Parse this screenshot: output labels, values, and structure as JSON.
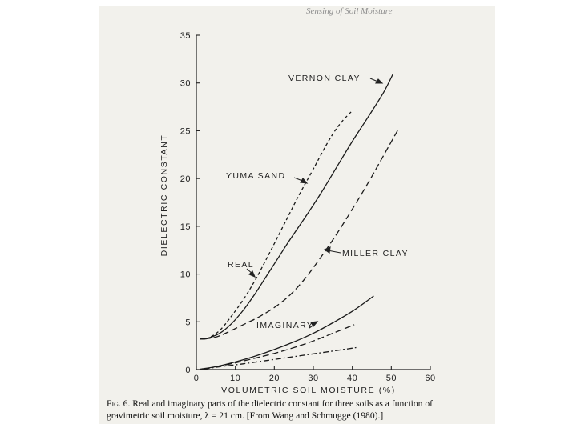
{
  "running_head": "Sensing of Soil Moisture",
  "caption": {
    "figure_label": "Fig. 6.",
    "line1": "Real and imaginary parts of the dielectric constant for three soils as a function of",
    "line2": "gravimetric soil moisture, λ = 21 cm. [From Wang and Schmugge (1980).]"
  },
  "chart_data": {
    "type": "line",
    "title": "",
    "xlabel": "VOLUMETRIC SOIL MOISTURE (%)",
    "ylabel": "DIELECTRIC CONSTANT",
    "xlim": [
      0,
      60
    ],
    "ylim": [
      0,
      35
    ],
    "x_ticks": [
      0,
      10,
      20,
      30,
      40,
      50,
      60
    ],
    "y_ticks": [
      0,
      5,
      10,
      15,
      20,
      25,
      30,
      35
    ],
    "grid": false,
    "legend": "none",
    "annotations": [
      {
        "text": "VERNON CLAY",
        "target_series": "vernon_real"
      },
      {
        "text": "YUMA SAND",
        "target_series": "yuma_real"
      },
      {
        "text": "MILLER CLAY",
        "target_series": "miller_real"
      },
      {
        "text": "REAL",
        "target_series": "yuma_real"
      },
      {
        "text": "IMAGINARY",
        "target_series": "vernon_imag"
      }
    ],
    "series": [
      {
        "id": "yuma_real",
        "style": "short-dash",
        "x": [
          1,
          3,
          6,
          9,
          12,
          15,
          18,
          22,
          26,
          30,
          34,
          37,
          40
        ],
        "y": [
          3.2,
          3.3,
          4.1,
          5.6,
          7.3,
          9.3,
          11.6,
          14.8,
          18.0,
          21.0,
          24.0,
          25.8,
          27.1
        ]
      },
      {
        "id": "vernon_real",
        "style": "solid",
        "x": [
          1,
          3,
          6,
          9,
          12,
          15,
          18,
          21,
          24,
          28,
          32,
          36,
          40,
          44,
          48,
          50.5
        ],
        "y": [
          3.2,
          3.3,
          3.8,
          4.8,
          6.2,
          7.9,
          9.8,
          11.7,
          13.6,
          16.0,
          18.5,
          21.2,
          23.9,
          26.4,
          29.0,
          31.0
        ]
      },
      {
        "id": "miller_real",
        "style": "long-dash",
        "x": [
          2,
          5,
          8,
          12,
          16,
          20,
          24,
          28,
          32,
          36,
          40,
          44,
          48,
          52
        ],
        "y": [
          3.2,
          3.4,
          3.9,
          4.7,
          5.5,
          6.5,
          7.8,
          9.6,
          11.8,
          14.2,
          16.8,
          19.5,
          22.4,
          25.3
        ]
      },
      {
        "id": "vernon_imag",
        "style": "solid",
        "x": [
          1,
          5,
          10,
          15,
          20,
          25,
          30,
          35,
          40,
          45.5
        ],
        "y": [
          0.05,
          0.3,
          0.8,
          1.4,
          2.1,
          2.9,
          3.8,
          4.9,
          6.1,
          7.7
        ]
      },
      {
        "id": "miller_imag",
        "style": "long-dash",
        "x": [
          5,
          10,
          15,
          20,
          25,
          30,
          35,
          40.5
        ],
        "y": [
          0.3,
          0.7,
          1.2,
          1.7,
          2.3,
          3.0,
          3.8,
          4.7
        ]
      },
      {
        "id": "yuma_imag",
        "style": "dash-dot",
        "x": [
          2,
          6,
          12,
          18,
          24,
          30,
          36,
          41
        ],
        "y": [
          0.05,
          0.3,
          0.6,
          0.95,
          1.3,
          1.65,
          2.0,
          2.3
        ]
      }
    ]
  }
}
